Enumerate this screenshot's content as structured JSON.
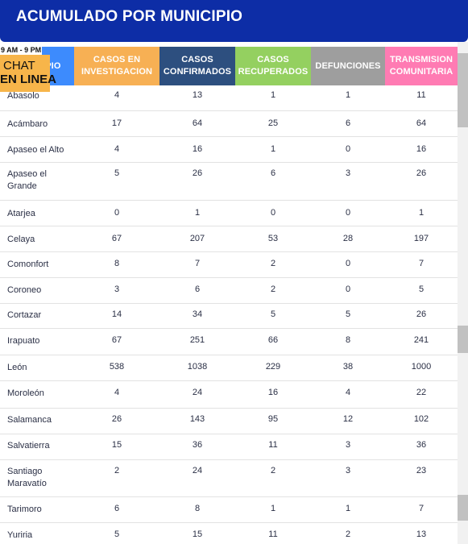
{
  "header": {
    "title": "ACUMULADO POR MUNICIPIO"
  },
  "chat": {
    "hours": "9 AM - 9 PM",
    "line1": "CHAT",
    "line2": "EN LINEA"
  },
  "columns": [
    {
      "label": "MUNICIPIO",
      "color": "#3d8bfd"
    },
    {
      "label": "CASOS EN INVESTIGACION",
      "color": "#f7b054"
    },
    {
      "label": "CASOS CONFIRMADOS",
      "color": "#2d4f7f"
    },
    {
      "label": "CASOS RECUPERADOS",
      "color": "#94d060"
    },
    {
      "label": "DEFUNCIONES",
      "color": "#9e9e9e"
    },
    {
      "label": "TRANSMISION COMUNITARIA",
      "color": "#ff7bb3"
    }
  ],
  "rows": [
    {
      "municipio": "Abasolo",
      "investigacion": "4",
      "confirmados": "13",
      "recuperados": "1",
      "defunciones": "1",
      "comunitaria": "11"
    },
    {
      "municipio": "Acámbaro",
      "investigacion": "17",
      "confirmados": "64",
      "recuperados": "25",
      "defunciones": "6",
      "comunitaria": "64"
    },
    {
      "municipio": "Apaseo el Alto",
      "investigacion": "4",
      "confirmados": "16",
      "recuperados": "1",
      "defunciones": "0",
      "comunitaria": "16"
    },
    {
      "municipio": "Apaseo el Grande",
      "investigacion": "5",
      "confirmados": "26",
      "recuperados": "6",
      "defunciones": "3",
      "comunitaria": "26"
    },
    {
      "municipio": "Atarjea",
      "investigacion": "0",
      "confirmados": "1",
      "recuperados": "0",
      "defunciones": "0",
      "comunitaria": "1"
    },
    {
      "municipio": "Celaya",
      "investigacion": "67",
      "confirmados": "207",
      "recuperados": "53",
      "defunciones": "28",
      "comunitaria": "197"
    },
    {
      "municipio": "Comonfort",
      "investigacion": "8",
      "confirmados": "7",
      "recuperados": "2",
      "defunciones": "0",
      "comunitaria": "7"
    },
    {
      "municipio": "Coroneo",
      "investigacion": "3",
      "confirmados": "6",
      "recuperados": "2",
      "defunciones": "0",
      "comunitaria": "5"
    },
    {
      "municipio": "Cortazar",
      "investigacion": "14",
      "confirmados": "34",
      "recuperados": "5",
      "defunciones": "5",
      "comunitaria": "26"
    },
    {
      "municipio": "Irapuato",
      "investigacion": "67",
      "confirmados": "251",
      "recuperados": "66",
      "defunciones": "8",
      "comunitaria": "241"
    },
    {
      "municipio": "León",
      "investigacion": "538",
      "confirmados": "1038",
      "recuperados": "229",
      "defunciones": "38",
      "comunitaria": "1000"
    },
    {
      "municipio": "Moroleón",
      "investigacion": "4",
      "confirmados": "24",
      "recuperados": "16",
      "defunciones": "4",
      "comunitaria": "22"
    },
    {
      "municipio": "Salamanca",
      "investigacion": "26",
      "confirmados": "143",
      "recuperados": "95",
      "defunciones": "12",
      "comunitaria": "102"
    },
    {
      "municipio": "Salvatierra",
      "investigacion": "15",
      "confirmados": "36",
      "recuperados": "11",
      "defunciones": "3",
      "comunitaria": "36"
    },
    {
      "municipio": "Santiago Maravatío",
      "investigacion": "2",
      "confirmados": "24",
      "recuperados": "2",
      "defunciones": "3",
      "comunitaria": "23"
    },
    {
      "municipio": "Tarimoro",
      "investigacion": "6",
      "confirmados": "8",
      "recuperados": "1",
      "defunciones": "1",
      "comunitaria": "7"
    },
    {
      "municipio": "Yuriria",
      "investigacion": "5",
      "confirmados": "15",
      "recuperados": "11",
      "defunciones": "2",
      "comunitaria": "13"
    }
  ]
}
